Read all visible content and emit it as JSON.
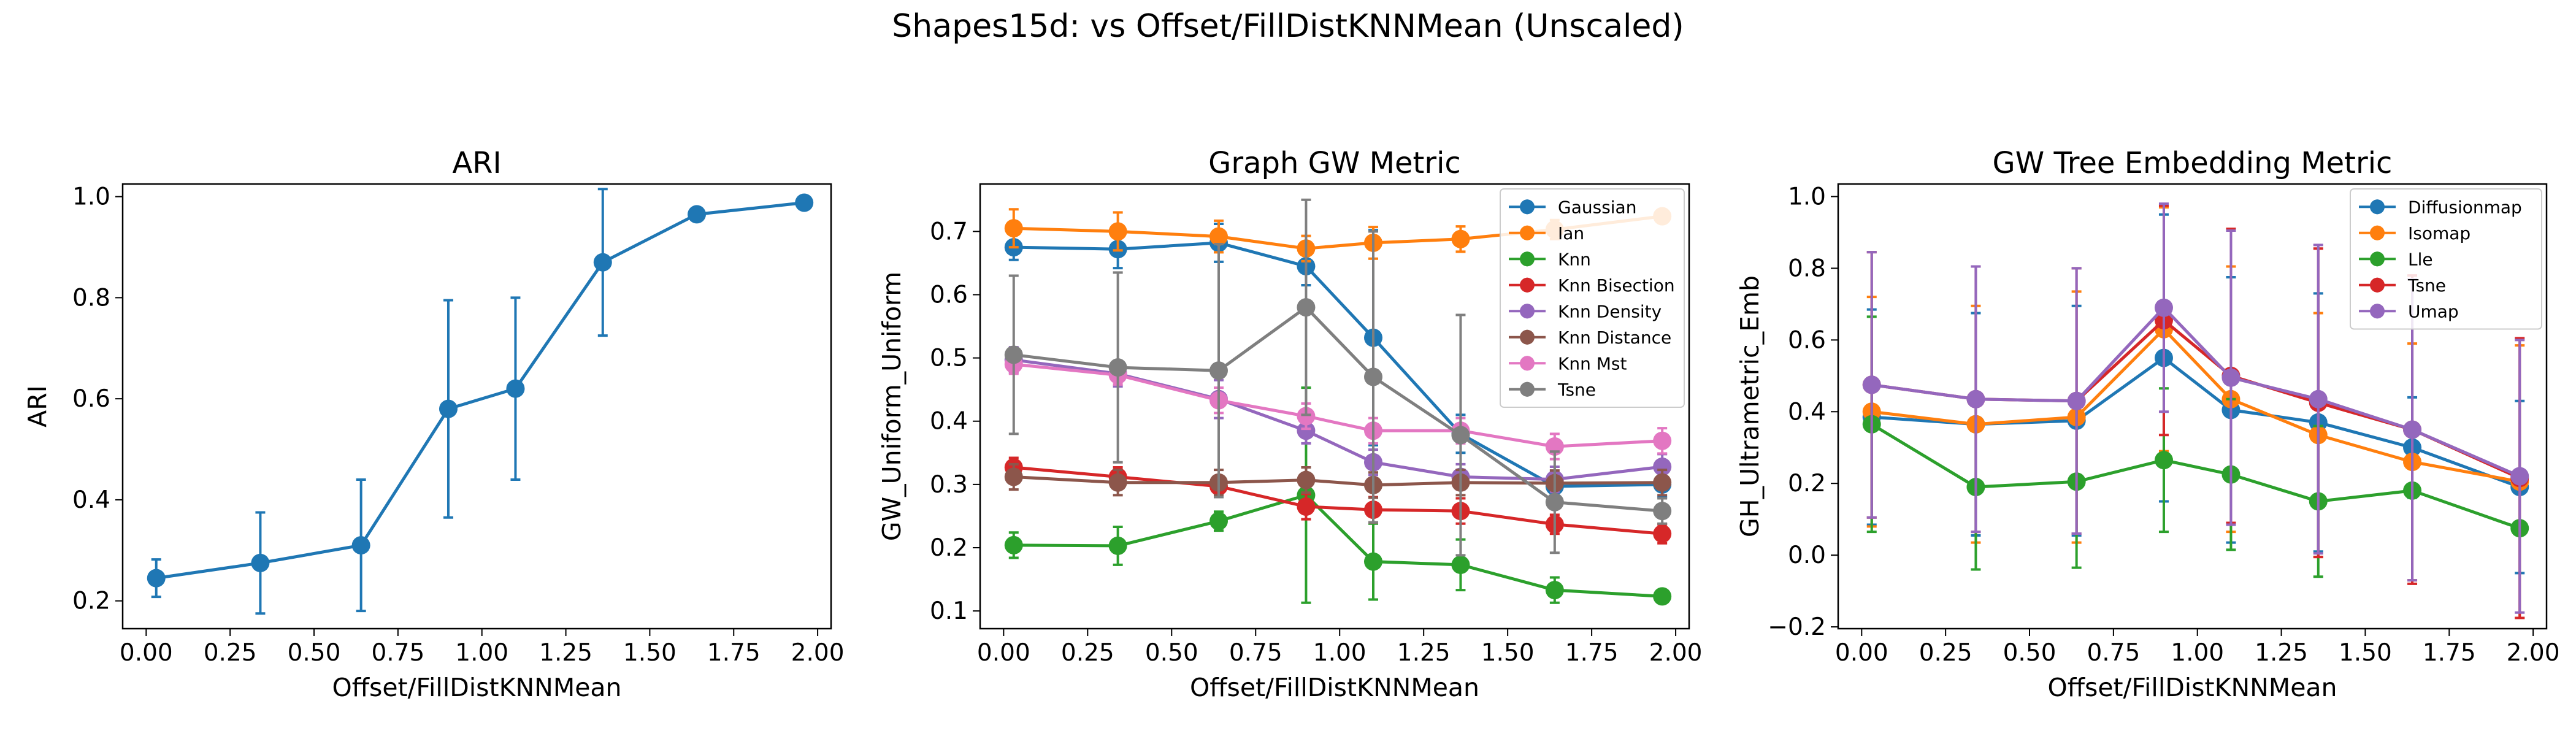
{
  "figure": {
    "title": "Shapes15d: vs Offset/FillDistKNNMean (Unscaled)"
  },
  "chart_data": [
    {
      "type": "line",
      "title": "ARI",
      "xlabel": "Offset/FillDistKNNMean",
      "ylabel": "ARI",
      "xlim": [
        -0.07,
        2.04
      ],
      "ylim": [
        0.145,
        1.025
      ],
      "xticks": [
        0.0,
        0.25,
        0.5,
        0.75,
        1.0,
        1.25,
        1.5,
        1.75,
        2.0
      ],
      "yticks": [
        0.2,
        0.4,
        0.6,
        0.8,
        1.0
      ],
      "xtick_labels": [
        "0.00",
        "0.25",
        "0.50",
        "0.75",
        "1.00",
        "1.25",
        "1.50",
        "1.75",
        "2.00"
      ],
      "ytick_labels": [
        "0.2",
        "0.4",
        "0.6",
        "0.8",
        "1.0"
      ],
      "legend": null,
      "x": [
        0.03,
        0.34,
        0.64,
        0.9,
        1.1,
        1.36,
        1.64,
        1.96
      ],
      "series": [
        {
          "color": "#1f77b4",
          "values": [
            0.245,
            0.275,
            0.31,
            0.58,
            0.62,
            0.87,
            0.965,
            0.988
          ],
          "errors": [
            0.037,
            0.1,
            0.13,
            0.215,
            0.18,
            0.145,
            0.0,
            0.0
          ]
        }
      ]
    },
    {
      "type": "line",
      "title": "Graph GW Metric",
      "xlabel": "Offset/FillDistKNNMean",
      "ylabel": "GW_Uniform_Uniform",
      "xlim": [
        -0.07,
        2.04
      ],
      "ylim": [
        0.072,
        0.775
      ],
      "xticks": [
        0.0,
        0.25,
        0.5,
        0.75,
        1.0,
        1.25,
        1.5,
        1.75,
        2.0
      ],
      "yticks": [
        0.1,
        0.2,
        0.3,
        0.4,
        0.5,
        0.6,
        0.7
      ],
      "xtick_labels": [
        "0.00",
        "0.25",
        "0.50",
        "0.75",
        "1.00",
        "1.25",
        "1.50",
        "1.75",
        "2.00"
      ],
      "ytick_labels": [
        "0.1",
        "0.2",
        "0.3",
        "0.4",
        "0.5",
        "0.6",
        "0.7"
      ],
      "legend": "top-right",
      "x": [
        0.03,
        0.34,
        0.64,
        0.9,
        1.1,
        1.36,
        1.64,
        1.96
      ],
      "series": [
        {
          "name": "Gaussian",
          "color": "#1f77b4",
          "values": [
            0.675,
            0.672,
            0.682,
            0.645,
            0.532,
            0.38,
            0.297,
            0.3
          ],
          "errors": [
            0.02,
            0.03,
            0.03,
            0.03,
            0.17,
            0.03,
            0.02,
            0.02
          ]
        },
        {
          "name": "Ian",
          "color": "#ff7f0e",
          "values": [
            0.705,
            0.7,
            0.692,
            0.673,
            0.682,
            0.688,
            0.703,
            0.724
          ],
          "errors": [
            0.03,
            0.03,
            0.025,
            0.02,
            0.025,
            0.02,
            0.015,
            0.01
          ]
        },
        {
          "name": "Knn",
          "color": "#2ca02c",
          "values": [
            0.204,
            0.203,
            0.242,
            0.283,
            0.178,
            0.173,
            0.133,
            0.123
          ],
          "errors": [
            0.02,
            0.03,
            0.015,
            0.17,
            0.06,
            0.04,
            0.02,
            0.01
          ]
        },
        {
          "name": "Knn Bisection",
          "color": "#d62728",
          "values": [
            0.327,
            0.312,
            0.297,
            0.265,
            0.26,
            0.258,
            0.237,
            0.222
          ],
          "errors": [
            0.015,
            0.015,
            0.01,
            0.02,
            0.02,
            0.02,
            0.015,
            0.015
          ]
        },
        {
          "name": "Knn Density",
          "color": "#9467bd",
          "values": [
            0.497,
            0.475,
            0.435,
            0.385,
            0.335,
            0.312,
            0.308,
            0.328
          ],
          "errors": [
            0.02,
            0.02,
            0.03,
            0.02,
            0.02,
            0.02,
            0.02,
            0.02
          ]
        },
        {
          "name": "Knn Distance",
          "color": "#8c564b",
          "values": [
            0.312,
            0.303,
            0.303,
            0.307,
            0.299,
            0.303,
            0.302,
            0.303
          ],
          "errors": [
            0.02,
            0.02,
            0.02,
            0.02,
            0.02,
            0.02,
            0.02,
            0.02
          ]
        },
        {
          "name": "Knn Mst",
          "color": "#e377c2",
          "values": [
            0.49,
            0.473,
            0.433,
            0.408,
            0.385,
            0.385,
            0.36,
            0.369
          ],
          "errors": [
            0.015,
            0.015,
            0.02,
            0.02,
            0.02,
            0.02,
            0.02,
            0.02
          ]
        },
        {
          "name": "Tsne",
          "color": "#7f7f7f",
          "values": [
            0.505,
            0.485,
            0.48,
            0.58,
            0.47,
            0.378,
            0.272,
            0.258
          ],
          "errors": [
            0.125,
            0.15,
            0.2,
            0.17,
            0.23,
            0.19,
            0.08,
            0.02
          ]
        }
      ]
    },
    {
      "type": "line",
      "title": "GW Tree Embedding Metric",
      "xlabel": "Offset/FillDistKNNMean",
      "ylabel": "GH_Ultrametric_Emb",
      "xlim": [
        -0.07,
        2.04
      ],
      "ylim": [
        -0.205,
        1.035
      ],
      "xticks": [
        0.0,
        0.25,
        0.5,
        0.75,
        1.0,
        1.25,
        1.5,
        1.75,
        2.0
      ],
      "yticks": [
        -0.2,
        0.0,
        0.2,
        0.4,
        0.6,
        0.8,
        1.0
      ],
      "xtick_labels": [
        "0.00",
        "0.25",
        "0.50",
        "0.75",
        "1.00",
        "1.25",
        "1.50",
        "1.75",
        "2.00"
      ],
      "ytick_labels": [
        "−0.2",
        "0.0",
        "0.2",
        "0.4",
        "0.6",
        "0.8",
        "1.0"
      ],
      "legend": "top-right",
      "x": [
        0.03,
        0.34,
        0.64,
        0.9,
        1.1,
        1.36,
        1.64,
        1.96
      ],
      "series": [
        {
          "name": "Diffusionmap",
          "color": "#1f77b4",
          "values": [
            0.385,
            0.365,
            0.375,
            0.55,
            0.405,
            0.37,
            0.3,
            0.19
          ],
          "errors": [
            0.3,
            0.31,
            0.32,
            0.4,
            0.37,
            0.36,
            0.14,
            0.24
          ]
        },
        {
          "name": "Isomap",
          "color": "#ff7f0e",
          "values": [
            0.4,
            0.365,
            0.385,
            0.63,
            0.435,
            0.335,
            0.26,
            0.205
          ],
          "errors": [
            0.32,
            0.33,
            0.35,
            0.34,
            0.37,
            0.34,
            0.33,
            0.38
          ]
        },
        {
          "name": "Lle",
          "color": "#2ca02c",
          "values": [
            0.365,
            0.19,
            0.205,
            0.265,
            0.225,
            0.15,
            0.18,
            0.075
          ],
          "errors": [
            0.3,
            0.23,
            0.24,
            0.2,
            0.21,
            0.21,
            0.0,
            0.0
          ]
        },
        {
          "name": "Tsne",
          "color": "#d62728",
          "values": [
            0.475,
            0.435,
            0.43,
            0.655,
            0.5,
            0.425,
            0.35,
            0.215
          ],
          "errors": [
            0.37,
            0.37,
            0.37,
            0.32,
            0.41,
            0.43,
            0.43,
            0.39
          ]
        },
        {
          "name": "Umap",
          "color": "#9467bd",
          "values": [
            0.475,
            0.435,
            0.43,
            0.69,
            0.495,
            0.435,
            0.35,
            0.22
          ],
          "errors": [
            0.37,
            0.37,
            0.37,
            0.29,
            0.41,
            0.43,
            0.42,
            0.38
          ]
        }
      ]
    }
  ]
}
